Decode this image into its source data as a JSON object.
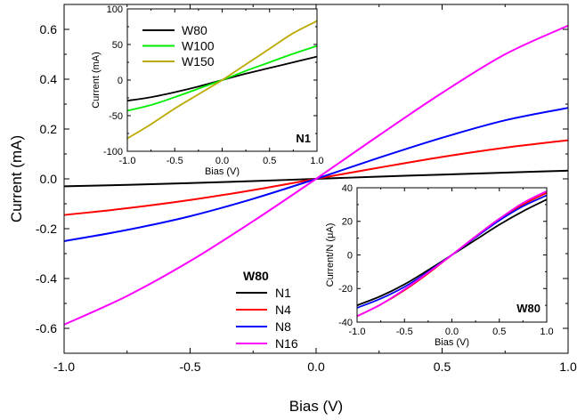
{
  "chart_data": [
    {
      "type": "line",
      "panel": "main",
      "xlabel": "Bias (V)",
      "ylabel": "Current (mA)",
      "xlim": [
        -1.0,
        1.0
      ],
      "ylim": [
        -0.7,
        0.7
      ],
      "xticks": [
        -1.0,
        -0.5,
        0.0,
        0.5,
        1.0
      ],
      "xtick_labels": [
        "-1.0",
        "-0.5",
        "0.0",
        "0.5",
        "1.0"
      ],
      "yticks": [
        -0.6,
        -0.4,
        -0.2,
        0.0,
        0.2,
        0.4,
        0.6
      ],
      "ytick_labels": [
        "-0.6",
        "-0.4",
        "-0.2",
        "0.0",
        "0.2",
        "0.4",
        "0.6"
      ],
      "legend_title": "W80",
      "legend_position": "bottom-center",
      "x": [
        -1.0,
        -0.75,
        -0.5,
        -0.25,
        0.0,
        0.25,
        0.5,
        0.75,
        1.0
      ],
      "series": [
        {
          "name": "N1",
          "color": "#000000",
          "values": [
            -0.03,
            -0.024,
            -0.017,
            -0.009,
            0.0,
            0.009,
            0.017,
            0.025,
            0.033
          ]
        },
        {
          "name": "N4",
          "color": "#ff0000",
          "values": [
            -0.145,
            -0.118,
            -0.085,
            -0.045,
            0.0,
            0.045,
            0.088,
            0.125,
            0.155
          ]
        },
        {
          "name": "N8",
          "color": "#0000ff",
          "values": [
            -0.25,
            -0.205,
            -0.15,
            -0.08,
            0.0,
            0.085,
            0.165,
            0.235,
            0.285
          ]
        },
        {
          "name": "N16",
          "color": "#ff00ff",
          "values": [
            -0.585,
            -0.47,
            -0.33,
            -0.17,
            0.0,
            0.175,
            0.345,
            0.5,
            0.615
          ]
        }
      ]
    },
    {
      "type": "line",
      "panel": "inset-top-left",
      "xlabel": "Bias (V)",
      "ylabel": "Current (mA)",
      "xlim": [
        -1.0,
        1.0
      ],
      "ylim": [
        -100,
        100
      ],
      "xticks": [
        -1.0,
        -0.5,
        0.0,
        0.5,
        1.0
      ],
      "xtick_labels": [
        "-1.0",
        "-0.5",
        "0.0",
        "0.5",
        "1.0"
      ],
      "yticks": [
        -100,
        -50,
        0,
        50,
        100
      ],
      "ytick_labels": [
        "-100",
        "-50",
        "0",
        "50",
        "100"
      ],
      "annotation": "N1",
      "legend_position": "top-left",
      "x": [
        -1.0,
        -0.75,
        -0.5,
        -0.25,
        0.0,
        0.25,
        0.5,
        0.75,
        1.0
      ],
      "series": [
        {
          "name": "W80",
          "color": "#000000",
          "values": [
            -29,
            -24,
            -17,
            -9,
            0,
            9,
            17,
            25,
            33
          ]
        },
        {
          "name": "W100",
          "color": "#00ee00",
          "values": [
            -43,
            -35,
            -24,
            -12,
            0,
            13,
            25,
            37,
            48
          ]
        },
        {
          "name": "W150",
          "color": "#bbaa00",
          "values": [
            -82,
            -62,
            -40,
            -20,
            0,
            22,
            44,
            66,
            83
          ]
        }
      ]
    },
    {
      "type": "line",
      "panel": "inset-bottom-right",
      "xlabel": "Bias (V)",
      "ylabel": "Current/N (μA)",
      "xlim": [
        -1.0,
        1.0
      ],
      "ylim": [
        -40,
        40
      ],
      "xticks": [
        -1.0,
        -0.5,
        0.0,
        0.5,
        1.0
      ],
      "xtick_labels": [
        "-1.0",
        "-0.5",
        "0.0",
        "0.5",
        "1.0"
      ],
      "yticks": [
        -40,
        -20,
        0,
        20,
        40
      ],
      "ytick_labels": [
        "-40",
        "-20",
        "0",
        "20",
        "40"
      ],
      "annotation": "W80",
      "x": [
        -1.0,
        -0.75,
        -0.5,
        -0.25,
        0.0,
        0.25,
        0.5,
        0.75,
        1.0
      ],
      "series": [
        {
          "color": "#000000",
          "values": [
            -30,
            -24.5,
            -17.5,
            -9,
            0,
            9,
            18,
            26,
            33
          ]
        },
        {
          "color": "#ff0000",
          "values": [
            -36.5,
            -29.5,
            -21,
            -11,
            0,
            11,
            21.5,
            30,
            37
          ]
        },
        {
          "color": "#0000ff",
          "values": [
            -31.5,
            -26,
            -19,
            -10,
            0,
            10.5,
            20.5,
            29,
            35.5
          ]
        },
        {
          "color": "#ff00ff",
          "values": [
            -36.5,
            -29.5,
            -20.5,
            -10.5,
            0,
            11,
            21.5,
            31,
            38
          ]
        }
      ]
    }
  ]
}
